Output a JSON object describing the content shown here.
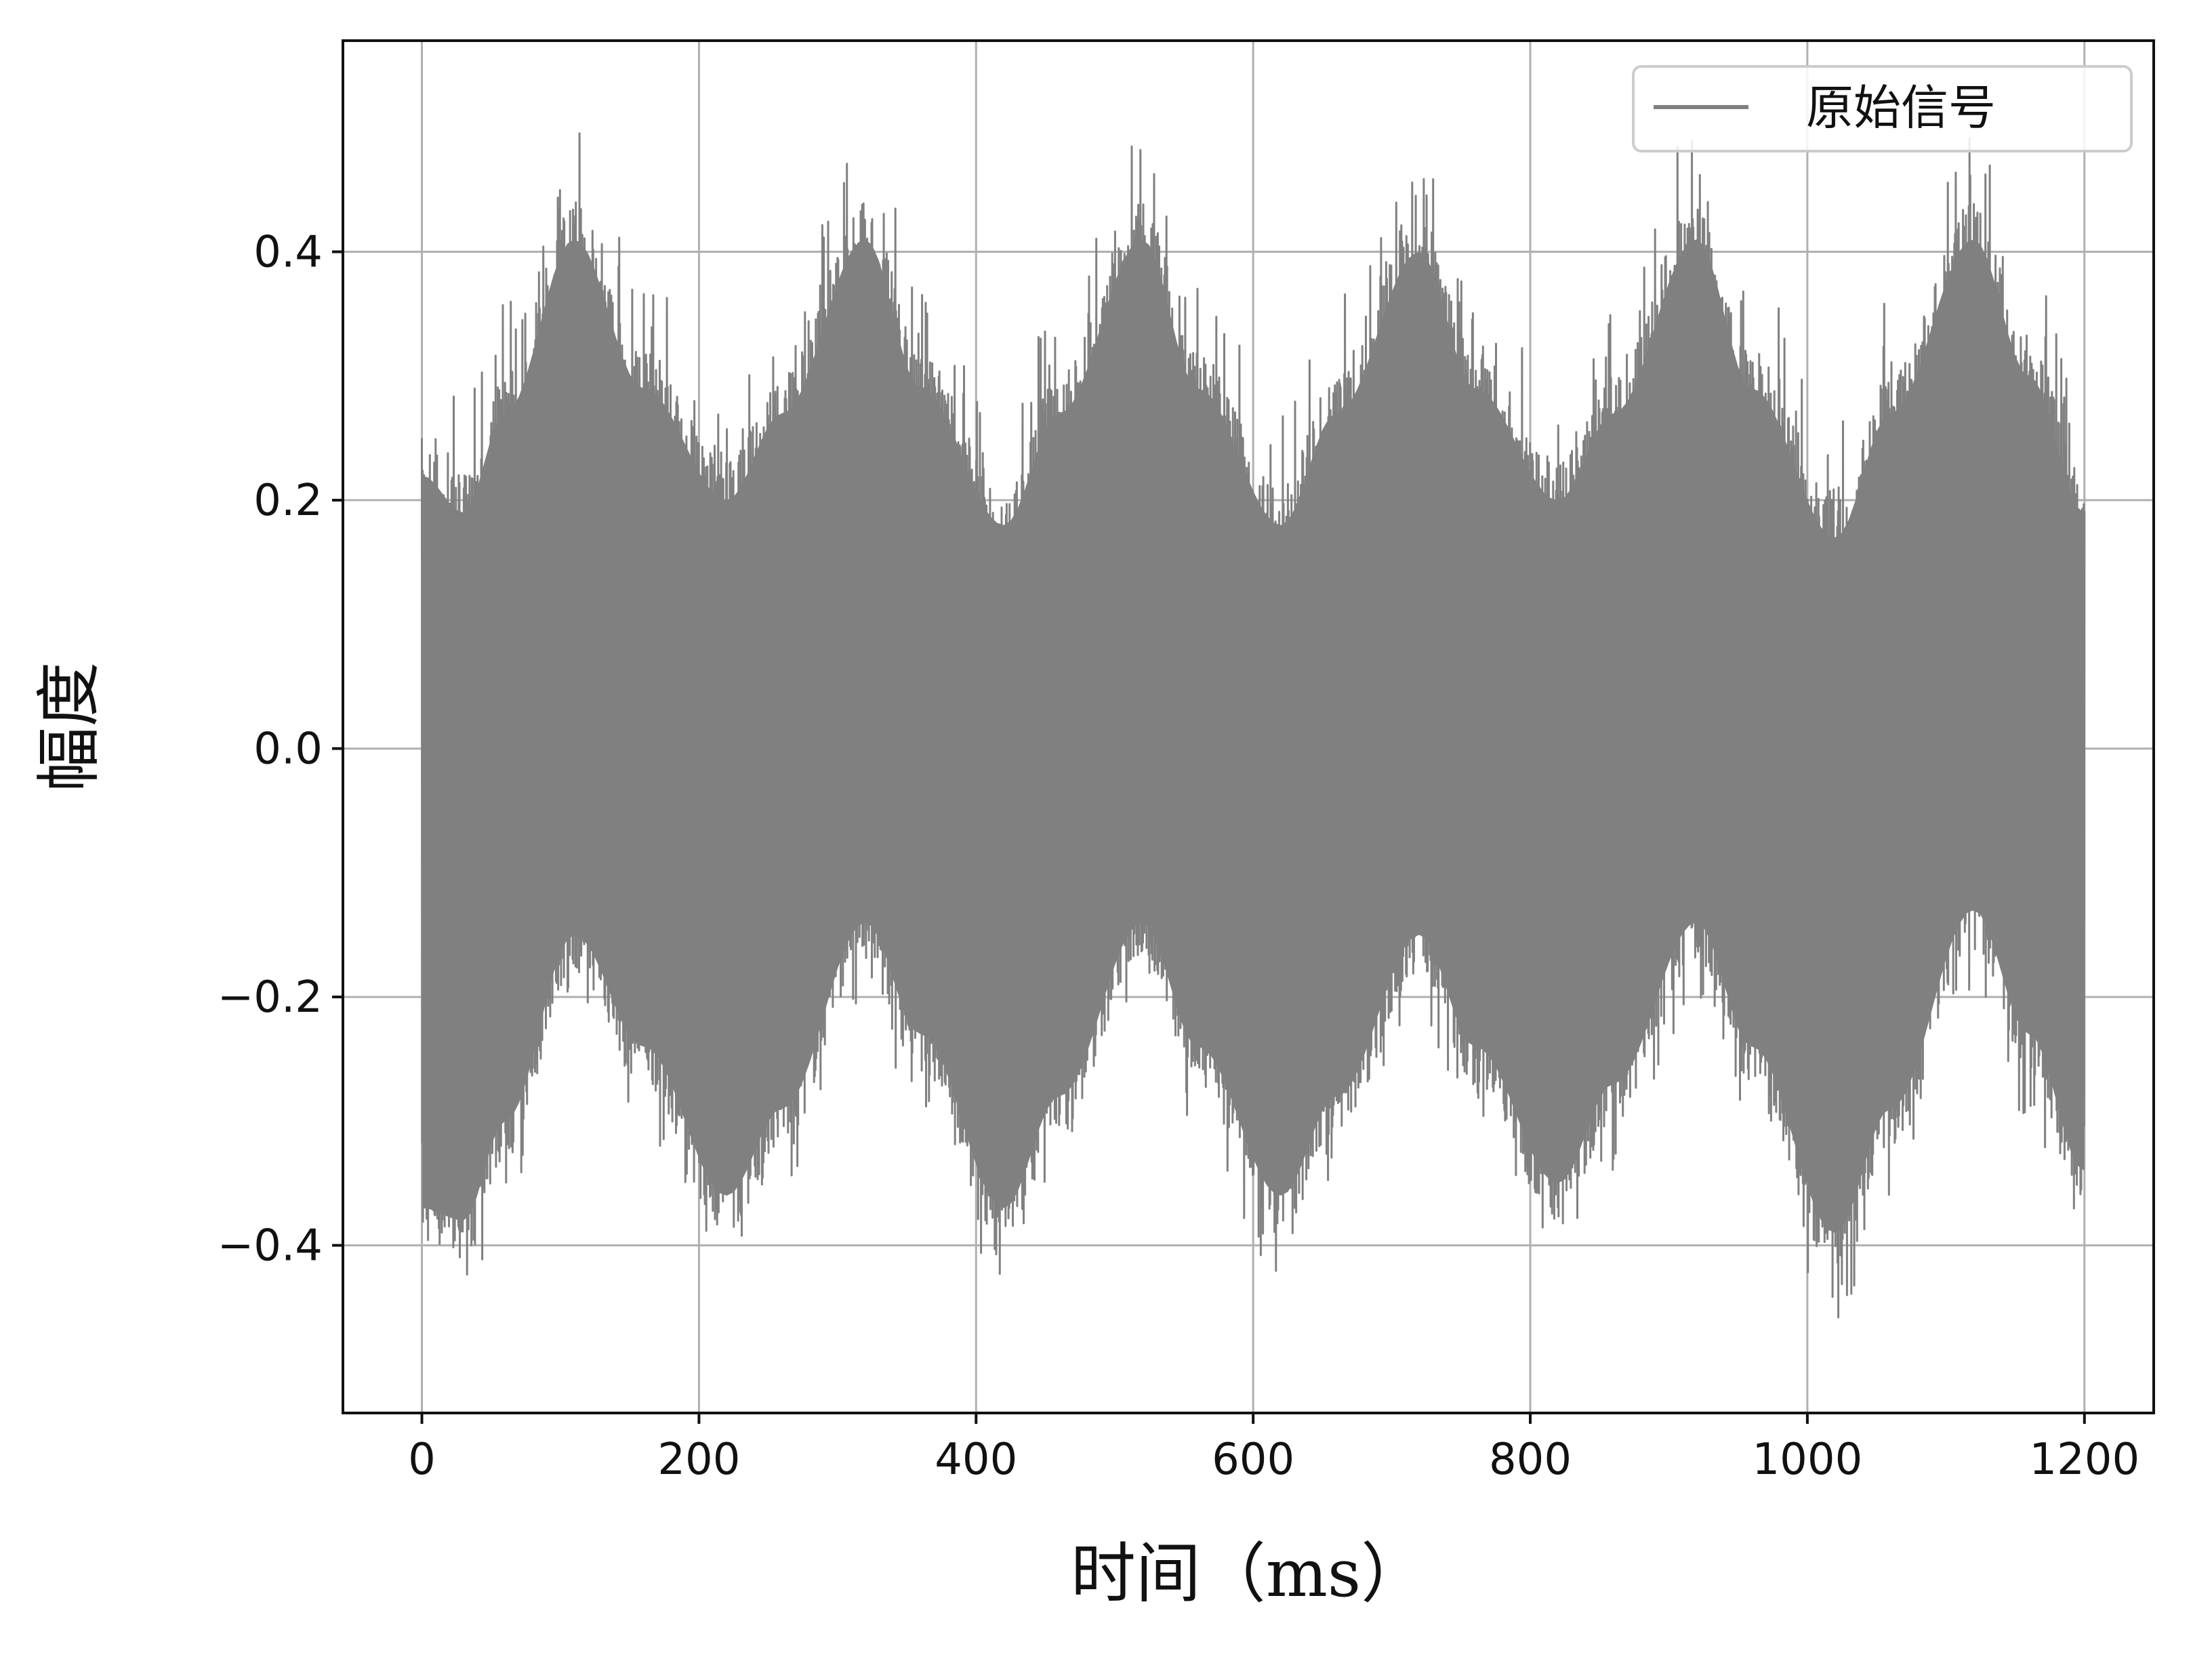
{
  "chart_data": {
    "type": "line",
    "title": "",
    "xlabel": "时间（ms）",
    "ylabel": "幅度",
    "xlim": [
      -57,
      1250
    ],
    "ylim": [
      -0.535,
      0.57
    ],
    "xticks": [
      0,
      200,
      400,
      600,
      800,
      1000,
      1200
    ],
    "xtick_labels": [
      "0",
      "200",
      "400",
      "600",
      "800",
      "1000",
      "1200"
    ],
    "yticks": [
      0.4,
      0.2,
      0.0,
      -0.2,
      -0.4
    ],
    "ytick_labels": [
      "0.4",
      "0.2",
      "0.0",
      "−0.2",
      "−0.4"
    ],
    "grid": true,
    "legend": {
      "position": "top-right",
      "entries": [
        "原始信号"
      ]
    },
    "series": [
      {
        "name": "原始信号",
        "color": "#808080",
        "x_range": [
          0,
          1200
        ],
        "envelope_period": 200,
        "envelope_points": [
          {
            "x": 0,
            "upper": 0.25,
            "lower": -0.4
          },
          {
            "x": 30,
            "upper": 0.22,
            "lower": -0.41
          },
          {
            "x": 60,
            "upper": 0.3,
            "lower": -0.33
          },
          {
            "x": 110,
            "upper": 0.44,
            "lower": -0.18
          },
          {
            "x": 160,
            "upper": 0.32,
            "lower": -0.27
          },
          {
            "x": 220,
            "upper": 0.23,
            "lower": -0.39
          },
          {
            "x": 260,
            "upper": 0.3,
            "lower": -0.32
          },
          {
            "x": 320,
            "upper": 0.44,
            "lower": -0.17
          },
          {
            "x": 360,
            "upper": 0.32,
            "lower": -0.26
          },
          {
            "x": 420,
            "upper": 0.21,
            "lower": -0.4
          },
          {
            "x": 460,
            "upper": 0.3,
            "lower": -0.31
          },
          {
            "x": 520,
            "upper": 0.44,
            "lower": -0.17
          },
          {
            "x": 560,
            "upper": 0.32,
            "lower": -0.27
          },
          {
            "x": 620,
            "upper": 0.21,
            "lower": -0.39
          },
          {
            "x": 660,
            "upper": 0.3,
            "lower": -0.31
          },
          {
            "x": 720,
            "upper": 0.43,
            "lower": -0.18
          },
          {
            "x": 760,
            "upper": 0.32,
            "lower": -0.27
          },
          {
            "x": 820,
            "upper": 0.23,
            "lower": -0.38
          },
          {
            "x": 860,
            "upper": 0.3,
            "lower": -0.3
          },
          {
            "x": 920,
            "upper": 0.44,
            "lower": -0.17
          },
          {
            "x": 960,
            "upper": 0.32,
            "lower": -0.27
          },
          {
            "x": 1020,
            "upper": 0.2,
            "lower": -0.42
          },
          {
            "x": 1060,
            "upper": 0.3,
            "lower": -0.32
          },
          {
            "x": 1120,
            "upper": 0.44,
            "lower": -0.16
          },
          {
            "x": 1160,
            "upper": 0.33,
            "lower": -0.26
          },
          {
            "x": 1200,
            "upper": 0.22,
            "lower": -0.37
          }
        ]
      }
    ]
  },
  "colors": {
    "series": "#808080",
    "grid": "#b0b0b0",
    "axes": "#111111",
    "legend_border": "#cccccc"
  }
}
